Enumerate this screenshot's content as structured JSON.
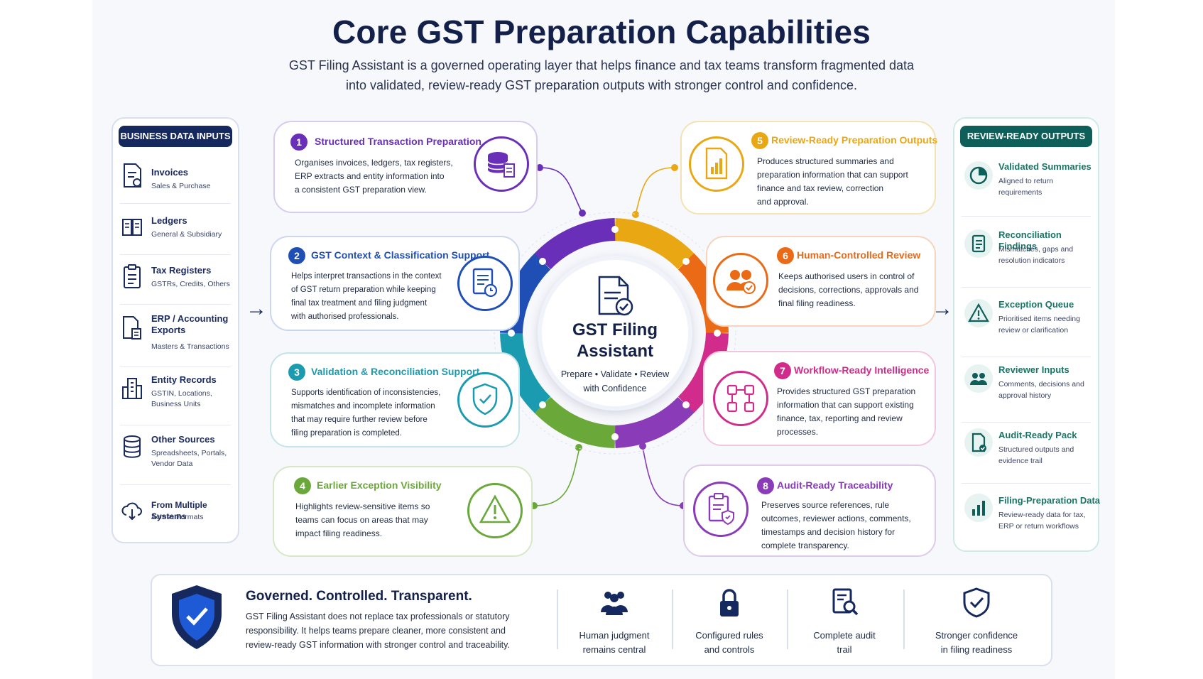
{
  "title": "Core GST Preparation Capabilities",
  "subtitle_line1": "GST Filing Assistant is a governed operating layer that helps finance and tax teams transform fragmented data",
  "subtitle_line2": "into validated, review-ready GST preparation outputs with stronger control and confidence.",
  "inputs": {
    "heading": "BUSINESS DATA INPUTS",
    "items": [
      {
        "title": "Invoices",
        "sub": "Sales & Purchase",
        "icon": "invoice-icon"
      },
      {
        "title": "Ledgers",
        "sub": "General & Subsidiary",
        "icon": "ledger-book-icon"
      },
      {
        "title": "Tax Registers",
        "sub": "GSTRs, Credits, Others",
        "icon": "clipboard-icon"
      },
      {
        "title": "ERP / Accounting Exports",
        "sub": "Masters & Transactions",
        "icon": "export-file-icon"
      },
      {
        "title": "Entity Records",
        "sub": "GSTIN, Locations, Business Units",
        "icon": "building-icon"
      },
      {
        "title": "Other Sources",
        "sub": "Spreadsheets, Portals, Vendor Data",
        "icon": "database-icon"
      },
      {
        "title": "From Multiple Systems",
        "sub": "Across Formats",
        "icon": "cloud-download-icon"
      }
    ]
  },
  "outputs": {
    "heading": "REVIEW-READY OUTPUTS",
    "items": [
      {
        "title": "Validated Summaries",
        "sub": "Aligned to return requirements",
        "icon": "pie-chart-icon"
      },
      {
        "title": "Reconciliation Findings",
        "sub": "Mismatches, gaps and resolution indicators",
        "icon": "checklist-icon"
      },
      {
        "title": "Exception Queue",
        "sub": "Prioritised items needing review or clarification",
        "icon": "warning-icon"
      },
      {
        "title": "Reviewer Inputs",
        "sub": "Comments, decisions and approval history",
        "icon": "users-icon"
      },
      {
        "title": "Audit-Ready Pack",
        "sub": "Structured outputs and evidence trail",
        "icon": "document-check-icon"
      },
      {
        "title": "Filing-Preparation Data",
        "sub": "Review-ready data for tax, ERP or return workflows",
        "icon": "bar-chart-icon"
      }
    ]
  },
  "center": {
    "title_line1": "GST Filing",
    "title_line2": "Assistant",
    "sub_line1": "Prepare • Validate • Review",
    "sub_line2": "with Confidence"
  },
  "capabilities": [
    {
      "num": "1",
      "title": "Structured Transaction Preparation",
      "color": "#6a2fb8",
      "icon": "database-file-icon",
      "body": [
        "Organises invoices, ledgers, tax registers,",
        "ERP extracts and entity information into",
        "a consistent GST preparation view."
      ]
    },
    {
      "num": "2",
      "title": "GST Context & Classification Support",
      "color": "#1f4fb5",
      "icon": "document-clock-icon",
      "body": [
        "Helps interpret transactions in the context",
        "of GST return preparation while keeping",
        "final tax treatment and filing judgment",
        "with authorised professionals."
      ]
    },
    {
      "num": "3",
      "title": "Validation & Reconciliation Support",
      "color": "#1a9bb0",
      "icon": "shield-check-icon",
      "body": [
        "Supports identification of inconsistencies,",
        "mismatches and incomplete information",
        "that may require further review before",
        "filing preparation is completed."
      ]
    },
    {
      "num": "4",
      "title": "Earlier Exception Visibility",
      "color": "#6aa83a",
      "icon": "warning-icon",
      "body": [
        "Highlights review-sensitive items so",
        "teams can focus on areas that may",
        "impact filing readiness."
      ]
    },
    {
      "num": "5",
      "title": "Review-Ready Preparation Outputs",
      "color": "#e9a713",
      "icon": "report-chart-icon",
      "body": [
        "Produces structured summaries and",
        "preparation information that can support",
        "finance and tax review, correction",
        "and approval."
      ]
    },
    {
      "num": "6",
      "title": "Human-Controlled Review",
      "color": "#ea6a16",
      "icon": "users-check-icon",
      "body": [
        "Keeps authorised users in control of",
        "decisions, corrections, approvals and",
        "final filing readiness."
      ]
    },
    {
      "num": "7",
      "title": "Workflow-Ready Intelligence",
      "color": "#d12c8c",
      "icon": "workflow-icon",
      "body": [
        "Provides structured GST preparation",
        "information that can support existing",
        "finance, tax, reporting and review",
        "processes."
      ]
    },
    {
      "num": "8",
      "title": "Audit-Ready Traceability",
      "color": "#8a3bb8",
      "icon": "clipboard-shield-icon",
      "body": [
        "Preserves source references, rule",
        "outcomes, reviewer actions, comments,",
        "timestamps and decision history for",
        "complete transparency."
      ]
    }
  ],
  "bottom": {
    "title": "Governed. Controlled. Transparent.",
    "body": [
      "GST Filing Assistant does not replace tax professionals or statutory",
      "responsibility. It helps teams prepare cleaner, more consistent and",
      "review-ready GST information with stronger control and traceability."
    ],
    "features": [
      {
        "label1": "Human judgment",
        "label2": "remains central",
        "icon": "people-icon"
      },
      {
        "label1": "Configured rules",
        "label2": "and controls",
        "icon": "lock-icon"
      },
      {
        "label1": "Complete audit",
        "label2": "trail",
        "icon": "audit-search-icon"
      },
      {
        "label1": "Stronger confidence",
        "label2": "in filing readiness",
        "icon": "shield-check-icon"
      }
    ]
  }
}
